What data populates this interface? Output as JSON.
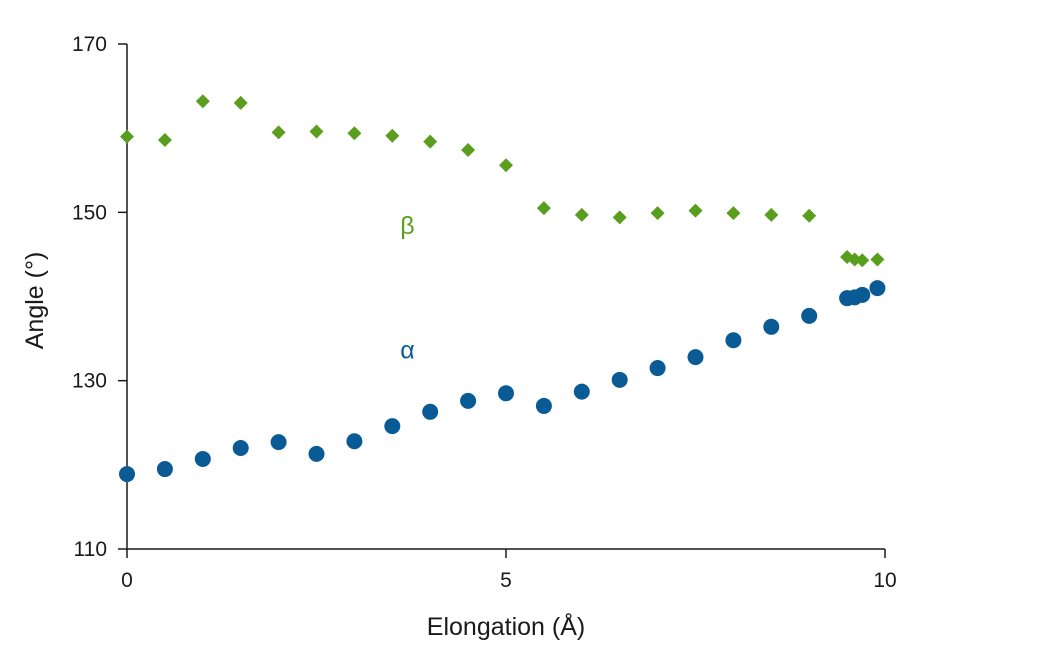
{
  "chart_data": {
    "type": "scatter",
    "xlabel": "Elongation (Å)",
    "ylabel": "Angle (°)",
    "xlim": [
      0,
      10
    ],
    "ylim": [
      110,
      170
    ],
    "xticks": [
      0,
      5,
      10
    ],
    "yticks": [
      110,
      130,
      150,
      170
    ],
    "grid": false,
    "legend": "none",
    "series": [
      {
        "name": "β",
        "marker": "diamond",
        "color": "#5a9e1e",
        "label_at": [
          3.7,
          148.5
        ],
        "points": [
          [
            0,
            159.0
          ],
          [
            0.5,
            158.6
          ],
          [
            1,
            163.2
          ],
          [
            1.5,
            163.0
          ],
          [
            2,
            159.5
          ],
          [
            2.5,
            159.6
          ],
          [
            3,
            159.4
          ],
          [
            3.5,
            159.1
          ],
          [
            4,
            158.4
          ],
          [
            4.5,
            157.4
          ],
          [
            5,
            155.6
          ],
          [
            5.5,
            150.5
          ],
          [
            6,
            149.7
          ],
          [
            6.5,
            149.4
          ],
          [
            7,
            149.9
          ],
          [
            7.5,
            150.2
          ],
          [
            8,
            149.9
          ],
          [
            8.5,
            149.7
          ],
          [
            9,
            149.6
          ],
          [
            9.5,
            144.7
          ],
          [
            9.6,
            144.4
          ],
          [
            9.7,
            144.3
          ],
          [
            9.9,
            144.4
          ]
        ]
      },
      {
        "name": "α",
        "marker": "circle",
        "color": "#0a5a96",
        "label_at": [
          3.7,
          133.7
        ],
        "points": [
          [
            0,
            118.9
          ],
          [
            0.5,
            119.5
          ],
          [
            1,
            120.7
          ],
          [
            1.5,
            122.0
          ],
          [
            2,
            122.7
          ],
          [
            2.5,
            121.3
          ],
          [
            3,
            122.8
          ],
          [
            3.5,
            124.6
          ],
          [
            4,
            126.3
          ],
          [
            4.5,
            127.6
          ],
          [
            5,
            128.5
          ],
          [
            5.5,
            127.0
          ],
          [
            6,
            128.7
          ],
          [
            6.5,
            130.1
          ],
          [
            7,
            131.5
          ],
          [
            7.5,
            132.8
          ],
          [
            8,
            134.8
          ],
          [
            8.5,
            136.4
          ],
          [
            9,
            137.7
          ],
          [
            9.5,
            139.8
          ],
          [
            9.6,
            139.9
          ],
          [
            9.7,
            140.2
          ],
          [
            9.9,
            141.0
          ]
        ]
      }
    ]
  }
}
